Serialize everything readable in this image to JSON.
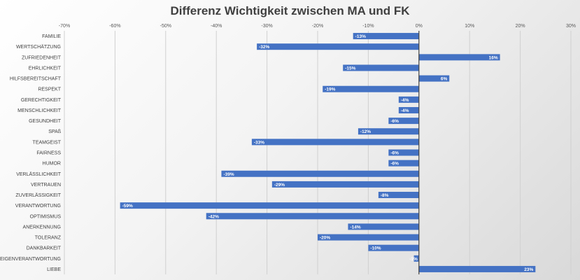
{
  "chart_data": {
    "type": "bar",
    "orientation": "horizontal",
    "title": "Differenz Wichtigkeit zwischen MA und FK",
    "xlim": [
      -70,
      30
    ],
    "x_ticks": [
      -70,
      -60,
      -50,
      -40,
      -30,
      -20,
      -10,
      0,
      10,
      20,
      30
    ],
    "x_tick_labels": [
      "-70%",
      "-60%",
      "-50%",
      "-40%",
      "-30%",
      "-20%",
      "-10%",
      "0%",
      "10%",
      "20%",
      "30%"
    ],
    "grid": true,
    "bar_color": "#4472c4",
    "categories": [
      "FAMILIE",
      "WERTSCHÄTZUNG",
      "ZUFRIEDENHEIT",
      "EHRLICHKEIT",
      "HILFSBEREITSCHAFT",
      "RESPEKT",
      "GERECHTIGKEIT",
      "MENSCHLICHKEIT",
      "GESUNDHEIT",
      "SPAß",
      "TEAMGEIST",
      "FAIRNESS",
      "HUMOR",
      "VERLÄSSLICHKEIT",
      "VERTRAUEN",
      "ZUVERLÄSSIGKEIT",
      "VERANTWORTUNG",
      "OPTIMISMUS",
      "ANERKENNUNG",
      "TOLERANZ",
      "DANKBARKEIT",
      "EIGENVERANTWORTUNG",
      "LIEBE"
    ],
    "values": [
      -13,
      -32,
      16,
      -15,
      6,
      -19,
      -4,
      -4,
      -6,
      -12,
      -33,
      -6,
      -6,
      -39,
      -29,
      -8,
      -59,
      -42,
      -14,
      -20,
      -10,
      -1,
      23
    ],
    "data_labels": [
      "-13%",
      "-32%",
      "16%",
      "-15%",
      "6%",
      "-19%",
      "-4%",
      "-4%",
      "-6%",
      "-12%",
      "-33%",
      "-6%",
      "-6%",
      "-39%",
      "-29%",
      "-8%",
      "-59%",
      "-42%",
      "-14%",
      "-20%",
      "-10%",
      "-1%",
      "23%"
    ]
  }
}
